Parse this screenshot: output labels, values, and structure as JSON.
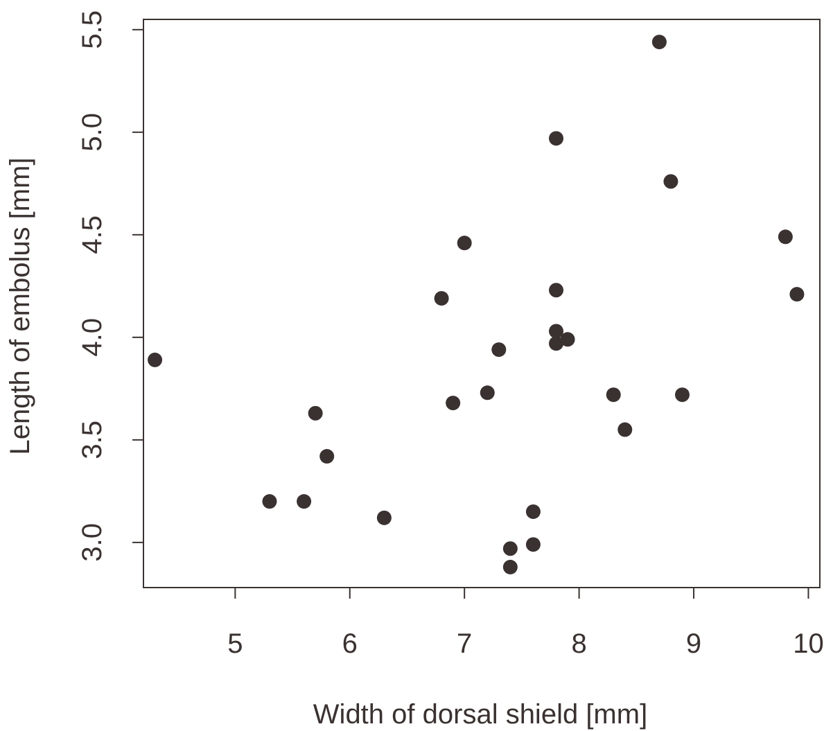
{
  "chart_data": {
    "type": "scatter",
    "title": "",
    "xlabel": "Width of dorsal shield [mm]",
    "ylabel": "Length of embolus [mm]",
    "xlim": [
      4.2,
      10.1
    ],
    "ylim": [
      2.78,
      5.55
    ],
    "xticks": [
      5,
      6,
      7,
      8,
      9,
      10
    ],
    "yticks": [
      3.0,
      3.5,
      4.0,
      4.5,
      5.0,
      5.5
    ],
    "xtick_labels": [
      "5",
      "6",
      "7",
      "8",
      "9",
      "10"
    ],
    "ytick_labels": [
      "3.0",
      "3.5",
      "4.0",
      "4.5",
      "5.0",
      "5.5"
    ],
    "grid": false,
    "marker_color": "#3a3230",
    "points": [
      {
        "x": 4.3,
        "y": 3.89
      },
      {
        "x": 5.3,
        "y": 3.2
      },
      {
        "x": 5.6,
        "y": 3.2
      },
      {
        "x": 5.7,
        "y": 3.63
      },
      {
        "x": 5.8,
        "y": 3.42
      },
      {
        "x": 6.3,
        "y": 3.12
      },
      {
        "x": 6.8,
        "y": 4.19
      },
      {
        "x": 6.9,
        "y": 3.68
      },
      {
        "x": 7.0,
        "y": 4.46
      },
      {
        "x": 7.2,
        "y": 3.73
      },
      {
        "x": 7.3,
        "y": 3.94
      },
      {
        "x": 7.4,
        "y": 2.97
      },
      {
        "x": 7.4,
        "y": 2.88
      },
      {
        "x": 7.6,
        "y": 3.15
      },
      {
        "x": 7.6,
        "y": 2.99
      },
      {
        "x": 7.8,
        "y": 4.97
      },
      {
        "x": 7.8,
        "y": 4.23
      },
      {
        "x": 7.8,
        "y": 4.03
      },
      {
        "x": 7.8,
        "y": 3.97
      },
      {
        "x": 7.9,
        "y": 3.99
      },
      {
        "x": 8.3,
        "y": 3.72
      },
      {
        "x": 8.4,
        "y": 3.55
      },
      {
        "x": 8.7,
        "y": 5.44
      },
      {
        "x": 8.8,
        "y": 4.76
      },
      {
        "x": 8.9,
        "y": 3.72
      },
      {
        "x": 9.8,
        "y": 4.49
      },
      {
        "x": 9.9,
        "y": 4.21
      }
    ]
  }
}
